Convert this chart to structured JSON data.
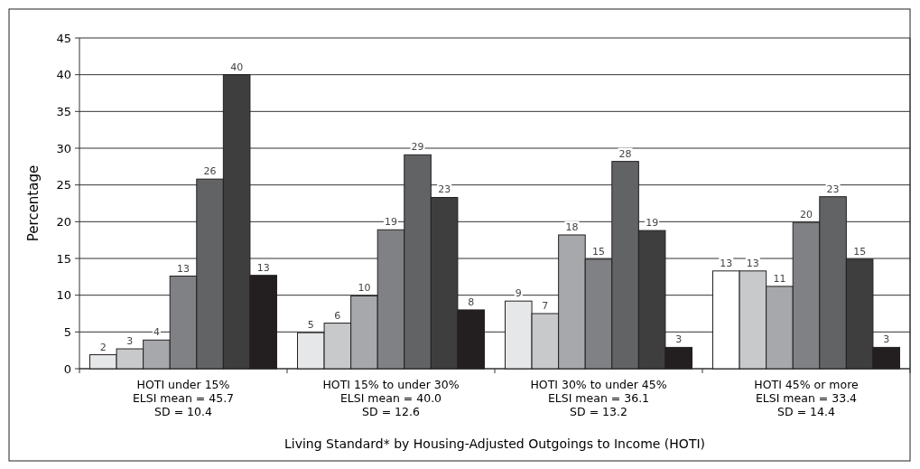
{
  "chart_data": {
    "type": "bar",
    "xlabel": "Living Standard* by Housing-Adjusted Outgoings to Income (HOTI)",
    "ylabel": "Percentage",
    "categories": [
      "HOTI under 15%\nELSI mean = 45.7\nSD = 10.4",
      "HOTI 15% to under 30%\nELSI mean = 40.0\nSD = 12.6",
      "HOTI 30% to under 45%\nELSI mean = 36.1\nSD = 13.2",
      "HOTI 45% or more\nELSI mean = 33.4\nSD = 14.4"
    ],
    "series": [
      {
        "colors": [
          "#e6e7e8",
          "#e6e7e8",
          "#e6e7e8",
          "#ffffff"
        ],
        "values": [
          1.9,
          4.9,
          9.2,
          13.3
        ],
        "value_labels": [
          "2",
          "5",
          "9",
          "13"
        ]
      },
      {
        "color": "#c8c9cb",
        "values": [
          2.7,
          6.2,
          7.5,
          13.3
        ],
        "value_labels": [
          "3",
          "6",
          "7",
          "13"
        ]
      },
      {
        "color": "#a7a8ab",
        "values": [
          3.9,
          9.9,
          18.2,
          11.2
        ],
        "value_labels": [
          "4",
          "10",
          "18",
          "11"
        ]
      },
      {
        "color": "#808184",
        "values": [
          12.6,
          18.9,
          14.9,
          19.9
        ],
        "value_labels": [
          "13",
          "19",
          "15",
          "20"
        ]
      },
      {
        "color": "#626365",
        "values": [
          25.8,
          29.1,
          28.2,
          23.4
        ],
        "value_labels": [
          "26",
          "29",
          "28",
          "23"
        ]
      },
      {
        "color": "#3e3e3f",
        "values": [
          40,
          23.3,
          18.8,
          14.9
        ],
        "value_labels": [
          "40",
          "23",
          "19",
          "15"
        ]
      },
      {
        "color": "#231f20",
        "values": [
          12.7,
          8.0,
          2.9,
          2.9
        ],
        "value_labels": [
          "13",
          "8",
          "3",
          "3"
        ]
      }
    ],
    "ylim": [
      0,
      45
    ],
    "yticks": [
      0,
      5,
      10,
      15,
      20,
      25,
      30,
      35,
      40,
      45
    ],
    "grid": "y"
  }
}
